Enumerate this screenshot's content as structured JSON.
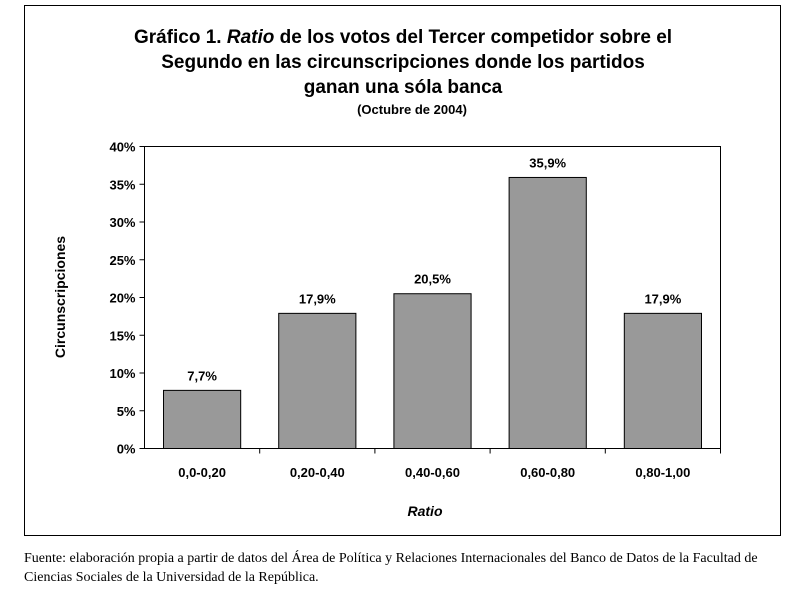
{
  "chart_data": {
    "type": "bar",
    "title": [
      [
        "Gráfico 1. ",
        "Ratio",
        " de los votos del Tercer competidor sobre el"
      ],
      [
        "Segundo en las circunscripciones donde los partidos"
      ],
      [
        "ganan una sóla banca"
      ]
    ],
    "subtitle": "(Octubre de 2004)",
    "xlabel": "Ratio",
    "ylabel": "Circunscripciones",
    "categories": [
      "0,0-0,20",
      "0,20-0,40",
      "0,40-0,60",
      "0,60-0,80",
      "0,80-1,00"
    ],
    "values": [
      7.7,
      17.9,
      20.5,
      35.9,
      17.9
    ],
    "value_labels": [
      "7,7%",
      "17,9%",
      "20,5%",
      "35,9%",
      "17,9%"
    ],
    "color": "#999999",
    "ylim": [
      0,
      40
    ],
    "yticks": [
      {
        "value": 0,
        "label": "0%"
      },
      {
        "value": 5,
        "label": "5%"
      },
      {
        "value": 10,
        "label": "10%"
      },
      {
        "value": 15,
        "label": "15%"
      },
      {
        "value": 20,
        "label": "20%"
      },
      {
        "value": 25,
        "label": "25%"
      },
      {
        "value": 30,
        "label": "30%"
      },
      {
        "value": 35,
        "label": "35%"
      },
      {
        "value": 40,
        "label": "40%"
      }
    ],
    "grid": false
  },
  "source": "Fuente: elaboración propia a partir de datos del Área de Política y Relaciones Internacionales del Banco de Datos de la Facultad de Ciencias Sociales de la Universidad de la República."
}
